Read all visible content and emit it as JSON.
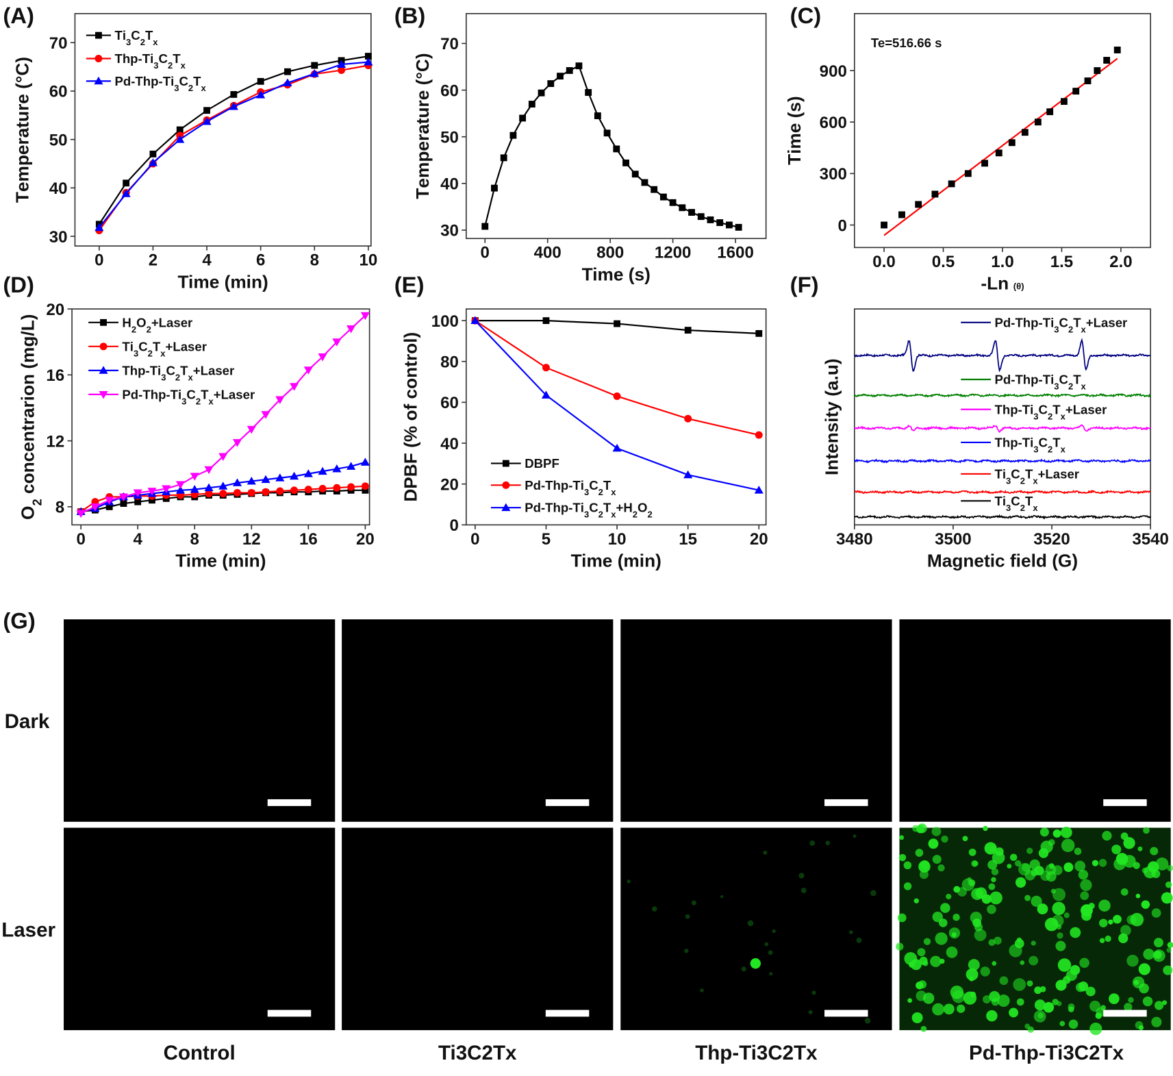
{
  "figure": {
    "panel_labels": [
      "(A)",
      "(B)",
      "(C)",
      "(D)",
      "(E)",
      "(F)",
      "(G)"
    ]
  },
  "chart_data": [
    {
      "id": "A",
      "type": "line",
      "xlabel": "Time (min)",
      "ylabel": "Temperature (°C)",
      "xlim": [
        -0.9,
        10.1
      ],
      "ylim": [
        28,
        76
      ],
      "xticks": [
        0,
        2,
        4,
        6,
        8,
        10
      ],
      "yticks": [
        30,
        40,
        50,
        60,
        70
      ],
      "x": [
        0,
        1,
        2,
        3,
        4,
        5,
        6,
        7,
        8,
        9,
        10
      ],
      "series": [
        {
          "name": "Ti3C2Tx",
          "color": "#000000",
          "marker": "square",
          "values": [
            32.5,
            41,
            47,
            52,
            56,
            59.3,
            62,
            64,
            65.3,
            66.3,
            67.2
          ]
        },
        {
          "name": "Thp-Ti3C2Tx",
          "color": "#ff0000",
          "marker": "circle",
          "values": [
            31.2,
            39,
            45,
            50.8,
            54,
            57,
            59.8,
            61.3,
            63.5,
            64.3,
            65.3
          ]
        },
        {
          "name": "Pd-Thp-Ti3C2Tx",
          "color": "#0000ff",
          "marker": "triangle-up",
          "values": [
            31.8,
            38.8,
            45.2,
            50,
            53.7,
            56.8,
            59.2,
            61.7,
            63.6,
            65.5,
            66
          ]
        }
      ],
      "legend": "top-left"
    },
    {
      "id": "B",
      "type": "line",
      "xlabel": "Time (s)",
      "ylabel": "Temperature (°C)",
      "xlim": [
        -120,
        1795
      ],
      "ylim": [
        28.2,
        76.4
      ],
      "xticks": [
        0,
        400,
        800,
        1200,
        1600
      ],
      "yticks": [
        30,
        40,
        50,
        60,
        70
      ],
      "x": [
        0,
        60,
        120,
        180,
        240,
        300,
        360,
        420,
        480,
        540,
        600,
        660,
        720,
        780,
        840,
        900,
        960,
        1020,
        1080,
        1140,
        1200,
        1260,
        1320,
        1380,
        1440,
        1500,
        1560,
        1620
      ],
      "series": [
        {
          "color": "#000000",
          "marker": "square",
          "values": [
            30.8,
            39,
            45.5,
            50.3,
            54,
            57,
            59.4,
            61.4,
            63,
            64.2,
            65.2,
            59.5,
            54.5,
            50.8,
            47.4,
            44.4,
            42,
            40.2,
            38.7,
            37.1,
            35.9,
            34.8,
            33.8,
            32.9,
            32.2,
            31.6,
            31.1,
            30.6
          ]
        }
      ]
    },
    {
      "id": "C",
      "type": "scatter",
      "xlabel": "-Ln",
      "xlabel_symbol": "(θ)",
      "ylabel": "Time (s)",
      "annotation": "Te=516.66 s",
      "xlim": [
        -0.25,
        2.25
      ],
      "ylim": [
        -131,
        1232
      ],
      "xticks": [
        0,
        0.5,
        1.0,
        1.5,
        2.0
      ],
      "xtick_labels": [
        "0.0",
        "0.5",
        "1.0",
        "1.5",
        "2.0"
      ],
      "yticks": [
        0,
        300,
        600,
        900
      ],
      "x": [
        0,
        0.15,
        0.29,
        0.43,
        0.57,
        0.71,
        0.85,
        0.97,
        1.08,
        1.19,
        1.3,
        1.4,
        1.52,
        1.62,
        1.72,
        1.8,
        1.88,
        1.97
      ],
      "series": [
        {
          "color": "#000000",
          "marker": "square",
          "values": [
            0,
            60,
            120,
            180,
            240,
            300,
            360,
            420,
            480,
            540,
            600,
            660,
            720,
            780,
            840,
            900,
            960,
            1020
          ]
        }
      ],
      "fit": {
        "color": "#ff0000",
        "x": [
          0,
          1.97
        ],
        "y": [
          -60,
          970
        ]
      }
    },
    {
      "id": "D",
      "type": "line",
      "xlabel": "Time (min)",
      "ylabel": "O2 concentrarion (mg/L)",
      "xlim": [
        -0.63,
        20.3
      ],
      "ylim": [
        6.9,
        20.0
      ],
      "xticks": [
        0,
        4,
        8,
        12,
        16,
        20
      ],
      "yticks": [
        8,
        12,
        16,
        20
      ],
      "x": [
        0,
        1,
        2,
        3,
        4,
        5,
        6,
        7,
        8,
        9,
        10,
        11,
        12,
        13,
        14,
        15,
        16,
        17,
        18,
        19,
        20
      ],
      "series": [
        {
          "name": "H2O2+Laser",
          "color": "#000000",
          "marker": "square",
          "values": [
            7.7,
            7.8,
            8.0,
            8.2,
            8.3,
            8.4,
            8.5,
            8.6,
            8.6,
            8.7,
            8.7,
            8.75,
            8.8,
            8.85,
            8.85,
            8.9,
            8.9,
            8.95,
            8.95,
            9.0,
            9.0
          ]
        },
        {
          "name": "Ti3C2Tx+Laser",
          "color": "#ff0000",
          "marker": "circle",
          "values": [
            7.7,
            8.3,
            8.6,
            8.6,
            8.65,
            8.65,
            8.7,
            8.7,
            8.75,
            8.8,
            8.8,
            8.85,
            8.85,
            8.9,
            8.95,
            9.0,
            9.05,
            9.1,
            9.15,
            9.2,
            9.25
          ]
        },
        {
          "name": "Thp-Ti3C2Tx+Laser",
          "color": "#0000ff",
          "marker": "triangle-up",
          "values": [
            7.7,
            7.9,
            8.3,
            8.6,
            8.7,
            8.8,
            8.9,
            9.0,
            9.05,
            9.15,
            9.25,
            9.45,
            9.55,
            9.65,
            9.75,
            9.85,
            10.0,
            10.15,
            10.3,
            10.45,
            10.7
          ]
        },
        {
          "name": "Pd-Thp-Ti3C2Tx+Laser",
          "color": "#ff00ff",
          "marker": "triangle-down",
          "values": [
            7.6,
            8.0,
            8.4,
            8.6,
            8.85,
            8.95,
            9.1,
            9.35,
            9.85,
            10.25,
            11.05,
            11.9,
            12.7,
            13.6,
            14.5,
            15.3,
            16.3,
            17.1,
            18.0,
            18.8,
            19.6
          ]
        }
      ],
      "legend": "top-left"
    },
    {
      "id": "E",
      "type": "line",
      "xlabel": "Time (min)",
      "ylabel": "DPBF (% of control)",
      "xlim": [
        -0.63,
        20.5
      ],
      "ylim": [
        0,
        105.7
      ],
      "xticks": [
        0,
        5,
        10,
        15,
        20
      ],
      "yticks": [
        0,
        20,
        40,
        60,
        80,
        100
      ],
      "x": [
        0,
        5,
        10,
        15,
        20
      ],
      "series": [
        {
          "name": "DBPF",
          "color": "#000000",
          "marker": "square",
          "values": [
            100,
            100,
            98.5,
            95.3,
            93.7
          ]
        },
        {
          "name": "Pd-Thp-Ti3C2Tx",
          "color": "#ff0000",
          "marker": "circle",
          "values": [
            100,
            77,
            63,
            52,
            44
          ]
        },
        {
          "name": "Pd-Thp-Ti3C2Tx+H2O2",
          "color": "#0000ff",
          "marker": "triangle-up",
          "values": [
            100,
            63.5,
            37.5,
            24.5,
            17
          ]
        }
      ],
      "legend": "bottom-left"
    },
    {
      "id": "F",
      "type": "line",
      "xlabel": "Magnetic field (G)",
      "ylabel": "Intensity (a.u)",
      "xlim": [
        3480,
        3540
      ],
      "ylim": [
        0,
        100
      ],
      "xticks": [
        3480,
        3500,
        3520,
        3540
      ],
      "yticks": [],
      "series": [
        {
          "name": "Pd-Thp-Ti3C2Tx+Laser",
          "color": "#000080",
          "offset": 78.5,
          "peaks_G": [
            3491.5,
            3509,
            3526.5
          ],
          "amplitude": 7
        },
        {
          "name": "Pd-Thp-Ti3C2Tx",
          "color": "#008000",
          "offset": 60,
          "peaks_G": [],
          "amplitude": 0
        },
        {
          "name": "Thp-Ti3C2Tx+Laser",
          "color": "#ff00ff",
          "offset": 44.8,
          "peaks_G": [
            3491.5,
            3509,
            3526.5
          ],
          "amplitude": 1.3
        },
        {
          "name": "Thp-Ti3C2Tx",
          "color": "#0000ff",
          "offset": 29.6,
          "peaks_G": [],
          "amplitude": 0
        },
        {
          "name": "Ti3C2Tx+Laser",
          "color": "#ff0000",
          "offset": 15.2,
          "peaks_G": [],
          "amplitude": 0
        },
        {
          "name": "Ti3C2Tx",
          "color": "#000000",
          "offset": 3.7,
          "peaks_G": [],
          "amplitude": 0
        }
      ],
      "legend": "stacked labels"
    }
  ],
  "micrographs": {
    "row_labels": [
      "Dark",
      "Laser"
    ],
    "column_labels": [
      "Control",
      "Ti3C2Tx",
      "Thp-Ti3C2Tx",
      "Pd-Thp-Ti3C2Tx"
    ],
    "fluorescence_color": "#22e622",
    "scale_bar_color": "#ffffff"
  }
}
